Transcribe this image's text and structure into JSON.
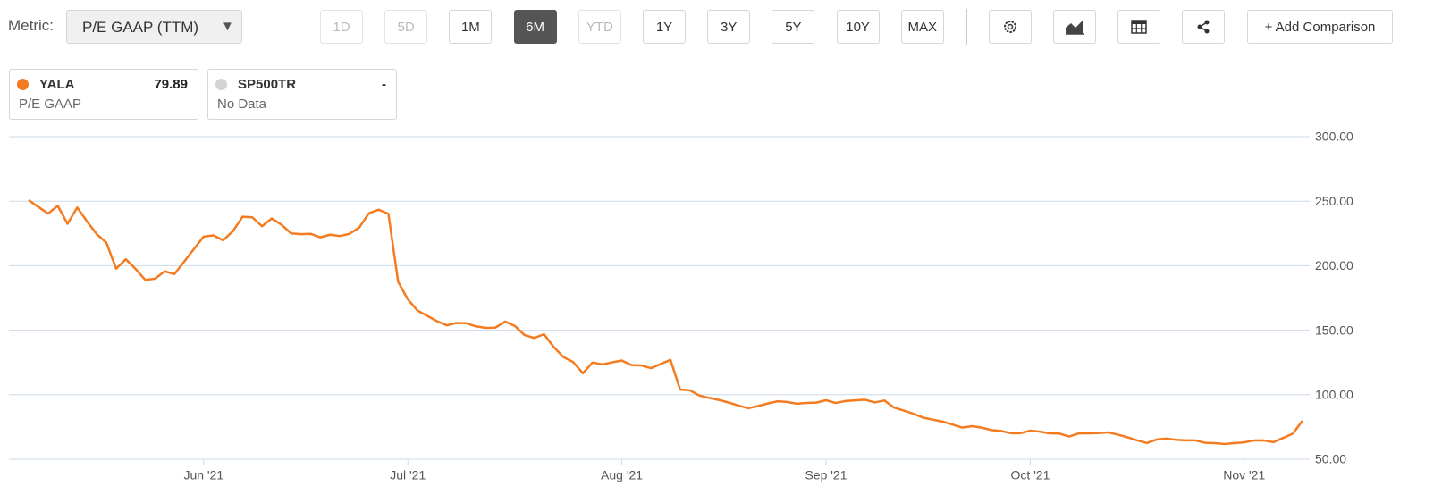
{
  "toolbar": {
    "metric_label": "Metric:",
    "metric": "P/E GAAP (TTM)",
    "dropdown_arrow": "▼",
    "ranges": [
      {
        "label": "1D",
        "disabled": true
      },
      {
        "label": "5D",
        "disabled": true
      },
      {
        "label": "1M"
      },
      {
        "label": "6M",
        "active": true
      },
      {
        "label": "YTD",
        "disabled": true
      },
      {
        "label": "1Y"
      },
      {
        "label": "3Y"
      },
      {
        "label": "5Y"
      },
      {
        "label": "10Y"
      },
      {
        "label": "MAX"
      }
    ],
    "add_comparison": "+ Add Comparison"
  },
  "legend": [
    {
      "symbol": "YALA",
      "value": 79.89,
      "metric": "P/E GAAP",
      "color": "#f47b20"
    },
    {
      "symbol": "SP500TR",
      "value": "-",
      "metric": "No Data",
      "color": "#d3d3d3"
    }
  ],
  "chart_data": {
    "type": "line",
    "color": "#f47b20",
    "grid": true,
    "categories": [
      null,
      null,
      null,
      null,
      null,
      null,
      null,
      null,
      null,
      null,
      null,
      null,
      null,
      null,
      null,
      null,
      null,
      null,
      "Jun '21",
      null,
      null,
      null,
      null,
      null,
      null,
      null,
      null,
      null,
      null,
      null,
      null,
      null,
      null,
      null,
      null,
      null,
      null,
      null,
      null,
      "Jul '21",
      null,
      null,
      null,
      null,
      null,
      null,
      null,
      null,
      null,
      null,
      null,
      null,
      null,
      null,
      null,
      null,
      null,
      null,
      null,
      null,
      null,
      "Aug '21",
      null,
      null,
      null,
      null,
      null,
      null,
      null,
      null,
      null,
      null,
      null,
      null,
      null,
      null,
      null,
      null,
      null,
      null,
      null,
      null,
      "Sep '21",
      null,
      null,
      null,
      null,
      null,
      null,
      null,
      null,
      null,
      null,
      null,
      null,
      null,
      null,
      null,
      null,
      null,
      null,
      null,
      null,
      "Oct '21",
      null,
      null,
      null,
      null,
      null,
      null,
      null,
      null,
      null,
      null,
      null,
      null,
      null,
      null,
      null,
      null,
      null,
      null,
      null,
      null,
      null,
      "Nov '21",
      null,
      null,
      null,
      null,
      null,
      null
    ],
    "values": [
      250.8,
      245.6,
      240.4,
      246.4,
      232.5,
      245.1,
      234.4,
      224.5,
      217.8,
      197.7,
      205,
      197.5,
      189,
      190,
      195.6,
      193.5,
      203.2,
      212.9,
      222.5,
      223.5,
      219.7,
      226.7,
      237.9,
      237.5,
      230.6,
      236.6,
      231.8,
      225,
      224.4,
      224.7,
      222,
      224,
      223,
      224.7,
      229.6,
      240.7,
      243.4,
      240.2,
      187.5,
      173.9,
      165.2,
      161.1,
      157,
      153.8,
      155.6,
      155.4,
      153,
      151.8,
      152,
      156.7,
      153.3,
      146.2,
      144,
      146.9,
      137,
      129.2,
      125.3,
      116.6,
      125,
      123.5,
      125.1,
      126.5,
      123,
      122.7,
      120.6,
      123.8,
      127,
      104,
      103.4,
      99.3,
      97.5,
      95.9,
      93.9,
      91.6,
      89.5,
      91.2,
      93.2,
      94.9,
      94.4,
      93,
      93.6,
      93.9,
      95.7,
      93.6,
      95.1,
      95.6,
      96.1,
      94,
      95.5,
      90,
      87.7,
      85.2,
      82.2,
      80.7,
      79.1,
      76.9,
      74.5,
      75.6,
      74.5,
      72.6,
      71.9,
      70.2,
      70.2,
      72.2,
      71.4,
      70.1,
      69.9,
      67.6,
      70,
      70.1,
      70.3,
      70.8,
      69.1,
      67,
      64.6,
      62.6,
      65.3,
      66,
      65.1,
      64.6,
      64.6,
      62.7,
      62.5,
      61.8,
      62.5,
      63.1,
      64.5,
      64.6,
      63.2,
      66.5,
      69.8,
      79.89
    ],
    "ylim": [
      50,
      300
    ],
    "yticks": [
      {
        "value": 50,
        "label": "50.00"
      },
      {
        "value": 100,
        "label": "100.00"
      },
      {
        "value": 150,
        "label": "150.00"
      },
      {
        "value": 200,
        "label": "200.00"
      },
      {
        "value": 250,
        "label": "250.00"
      },
      {
        "value": 300,
        "label": "300.00"
      }
    ]
  }
}
